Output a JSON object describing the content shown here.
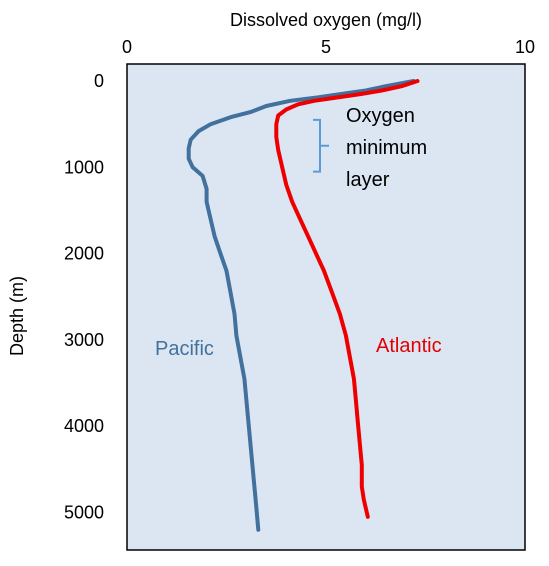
{
  "chart_data": {
    "type": "line",
    "x_axis_label": "Dissolved oxygen (mg/l)",
    "y_axis_label": "Depth (m)",
    "x_position": "top",
    "y_inverted": true,
    "xlim": [
      0,
      10
    ],
    "ylim": [
      0,
      5400
    ],
    "x_ticks": [
      "0",
      "5",
      "10"
    ],
    "y_ticks": [
      "0",
      "1000",
      "2000",
      "3000",
      "4000",
      "5000"
    ],
    "plot_background": "#dce6f2",
    "annotation": {
      "lines": [
        "Oxygen",
        "minimum",
        "layer"
      ],
      "bracket_depth_range": [
        450,
        1050
      ],
      "bracket_color": "#5b9bd5"
    },
    "series": [
      {
        "name": "Pacific",
        "color": "#41719c",
        "label_color": "#41719c",
        "points": [
          [
            7.2,
            0
          ],
          [
            6.5,
            60
          ],
          [
            6.0,
            110
          ],
          [
            5.4,
            150
          ],
          [
            4.8,
            190
          ],
          [
            4.1,
            230
          ],
          [
            3.5,
            290
          ],
          [
            3.1,
            360
          ],
          [
            2.6,
            420
          ],
          [
            2.1,
            500
          ],
          [
            1.8,
            580
          ],
          [
            1.6,
            680
          ],
          [
            1.55,
            780
          ],
          [
            1.55,
            900
          ],
          [
            1.65,
            1000
          ],
          [
            1.9,
            1100
          ],
          [
            2.0,
            1250
          ],
          [
            2.0,
            1400
          ],
          [
            2.1,
            1600
          ],
          [
            2.2,
            1800
          ],
          [
            2.35,
            2000
          ],
          [
            2.5,
            2200
          ],
          [
            2.6,
            2450
          ],
          [
            2.7,
            2700
          ],
          [
            2.75,
            2950
          ],
          [
            2.85,
            3200
          ],
          [
            2.95,
            3450
          ],
          [
            3.0,
            3700
          ],
          [
            3.05,
            3950
          ],
          [
            3.1,
            4200
          ],
          [
            3.15,
            4450
          ],
          [
            3.2,
            4700
          ],
          [
            3.25,
            4950
          ],
          [
            3.3,
            5200
          ]
        ]
      },
      {
        "name": "Atlantic",
        "color": "#ee0000",
        "label_color": "#e00000",
        "points": [
          [
            7.3,
            0
          ],
          [
            6.9,
            60
          ],
          [
            6.4,
            110
          ],
          [
            5.9,
            150
          ],
          [
            5.3,
            190
          ],
          [
            4.7,
            230
          ],
          [
            4.3,
            270
          ],
          [
            4.0,
            330
          ],
          [
            3.8,
            400
          ],
          [
            3.75,
            500
          ],
          [
            3.75,
            650
          ],
          [
            3.8,
            800
          ],
          [
            3.9,
            1000
          ],
          [
            4.0,
            1200
          ],
          [
            4.15,
            1400
          ],
          [
            4.35,
            1600
          ],
          [
            4.55,
            1800
          ],
          [
            4.75,
            2000
          ],
          [
            4.95,
            2200
          ],
          [
            5.15,
            2450
          ],
          [
            5.35,
            2700
          ],
          [
            5.5,
            2950
          ],
          [
            5.6,
            3200
          ],
          [
            5.7,
            3450
          ],
          [
            5.75,
            3700
          ],
          [
            5.8,
            3950
          ],
          [
            5.85,
            4200
          ],
          [
            5.9,
            4450
          ],
          [
            5.9,
            4700
          ],
          [
            5.95,
            4850
          ],
          [
            6.0,
            4950
          ],
          [
            6.05,
            5050
          ]
        ]
      }
    ]
  }
}
